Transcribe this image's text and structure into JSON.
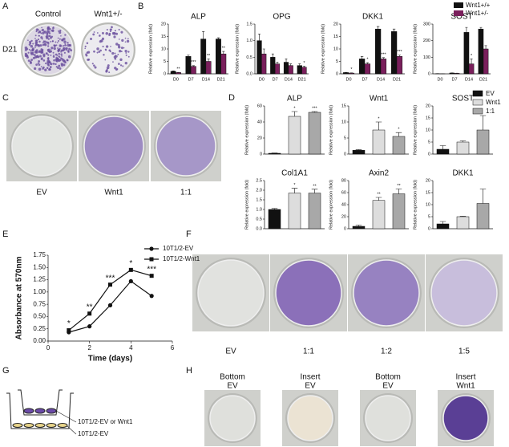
{
  "panel_letters": [
    "A",
    "B",
    "C",
    "D",
    "E",
    "F",
    "G",
    "H"
  ],
  "images": {
    "A": {
      "labels": [
        "Control",
        "Wnt1+/-"
      ],
      "row_label": "D21"
    },
    "C": {
      "labels": [
        "EV",
        "Wnt1",
        "1:1"
      ]
    },
    "F": {
      "labels": [
        "EV",
        "1:1",
        "1:2",
        "1:5"
      ]
    },
    "G": {
      "labels": [
        "10T1/2-EV or Wnt1",
        "10T1/2-EV"
      ]
    },
    "H": {
      "labels": [
        [
          "Bottom",
          "EV"
        ],
        [
          "Insert",
          "EV"
        ],
        [
          "Bottom",
          "EV"
        ],
        [
          "Insert",
          "Wnt1"
        ]
      ]
    }
  },
  "chart_data": [
    {
      "type": "bar",
      "title": "ALP",
      "y_label": "Relative expression (fold)",
      "categories": [
        "D0",
        "D7",
        "D14",
        "D21"
      ],
      "ylim": [
        0,
        20
      ],
      "yticks": [
        0,
        5,
        10,
        15,
        20
      ],
      "series": [
        {
          "name": "Wnt1+/+",
          "color": "#111111",
          "values": [
            1,
            7,
            14,
            14
          ],
          "errors": [
            0.2,
            0.5,
            3,
            0.5
          ]
        },
        {
          "name": "Wnt1+/-",
          "color": "#7a1f5c",
          "values": [
            0.5,
            3,
            5,
            8
          ],
          "errors": [
            0.1,
            0.3,
            1,
            1
          ],
          "annotations": [
            "**",
            "***",
            "**",
            "**"
          ]
        }
      ]
    },
    {
      "type": "bar",
      "title": "OPG",
      "y_label": "Relative expression (fold)",
      "categories": [
        "D0",
        "D7",
        "D14",
        "D21"
      ],
      "ylim": [
        0,
        1.5
      ],
      "yticks": [
        {
          "value": 0,
          "label": "0.0"
        },
        {
          "value": 0.5,
          "label": "0.5"
        },
        {
          "value": 1,
          "label": "1.0"
        },
        {
          "value": 1.5,
          "label": "1.5"
        }
      ],
      "series": [
        {
          "color": "#111111",
          "values": [
            1.0,
            0.5,
            0.35,
            0.25
          ],
          "errors": [
            0.2,
            0.1,
            0.1,
            0.05
          ]
        },
        {
          "color": "#7a1f5c",
          "values": [
            0.6,
            0.3,
            0.25,
            0.2
          ],
          "errors": [
            0.15,
            0.05,
            0.05,
            0.03
          ],
          "annotations": [
            null,
            null,
            null,
            "*"
          ]
        }
      ]
    },
    {
      "type": "bar",
      "title": "DKK1",
      "y_label": "Relative expression (fold)",
      "categories": [
        "D0",
        "D7",
        "D14",
        "D21"
      ],
      "ylim": [
        0,
        20
      ],
      "yticks": [
        0,
        5,
        10,
        15,
        20
      ],
      "series": [
        {
          "color": "#111111",
          "values": [
            0.5,
            6,
            18,
            17
          ],
          "errors": [
            0.1,
            1,
            1,
            1
          ]
        },
        {
          "color": "#7a1f5c",
          "values": [
            0.3,
            4,
            6,
            7
          ],
          "errors": [
            0.1,
            0.5,
            0.5,
            0.5
          ],
          "annotations": [
            "*",
            "*",
            "***",
            "***"
          ]
        }
      ]
    },
    {
      "type": "bar",
      "title": "SOST",
      "y_label": "Relative expression (fold)",
      "categories": [
        "D0",
        "D7",
        "D14",
        "D21"
      ],
      "ylim": [
        0,
        300
      ],
      "yticks": [
        0,
        100,
        200,
        300
      ],
      "series": [
        {
          "color": "#111111",
          "values": [
            1,
            5,
            250,
            270
          ],
          "errors": [
            0.5,
            1,
            30,
            10
          ]
        },
        {
          "color": "#7a1f5c",
          "values": [
            0.5,
            3,
            60,
            150
          ],
          "errors": [
            0.2,
            1,
            30,
            20
          ],
          "annotations": [
            null,
            null,
            "*",
            null
          ]
        }
      ]
    },
    {
      "type": "bar",
      "title": "ALP",
      "y_label": "Relative expression (fold)",
      "categories": [
        "EV",
        "Wnt1",
        "1:1"
      ],
      "colors": [
        "#111111",
        "#dddddd",
        "#a8a8a8"
      ],
      "ylim": [
        0,
        60
      ],
      "yticks": [
        0,
        20,
        40,
        60
      ],
      "values": [
        1,
        47,
        52
      ],
      "errors": [
        0.3,
        6,
        1
      ],
      "annotations": [
        null,
        "*",
        "***"
      ]
    },
    {
      "type": "bar",
      "title": "Wnt1",
      "y_label": "Relative expression (fold)",
      "colors": [
        "#111111",
        "#dddddd",
        "#a8a8a8"
      ],
      "ylim": [
        0,
        15
      ],
      "yticks": [
        0,
        5,
        10,
        15
      ],
      "values": [
        1.2,
        7.5,
        5.5
      ],
      "errors": [
        0.2,
        2.5,
        1.2
      ],
      "annotations": [
        null,
        "*",
        "*"
      ]
    },
    {
      "type": "bar",
      "title": "SOST",
      "y_label": "Relative expression (fold)",
      "colors": [
        "#111111",
        "#dddddd",
        "#a8a8a8"
      ],
      "ylim": [
        0,
        20
      ],
      "yticks": [
        0,
        5,
        10,
        15,
        20
      ],
      "values": [
        2,
        5,
        10
      ],
      "errors": [
        1.5,
        0.5,
        6
      ]
    },
    {
      "type": "bar",
      "title": "Col1A1",
      "y_label": "Relative expression (fold)",
      "colors": [
        "#111111",
        "#dddddd",
        "#a8a8a8"
      ],
      "ylim": [
        0,
        2.5
      ],
      "yticks": [
        {
          "value": 0,
          "label": "0.0"
        },
        {
          "value": 0.5,
          "label": "0.5"
        },
        {
          "value": 1,
          "label": "1.0"
        },
        {
          "value": 1.5,
          "label": "1.5"
        },
        {
          "value": 2,
          "label": "2.0"
        },
        {
          "value": 2.5,
          "label": "2.5"
        }
      ],
      "values": [
        1.0,
        1.85,
        1.85
      ],
      "errors": [
        0.05,
        0.25,
        0.2
      ],
      "annotations": [
        null,
        "*",
        "**"
      ]
    },
    {
      "type": "bar",
      "title": "Axin2",
      "y_label": "Relative expression (fold)",
      "colors": [
        "#111111",
        "#dddddd",
        "#a8a8a8"
      ],
      "ylim": [
        0,
        80
      ],
      "yticks": [
        0,
        20,
        40,
        60,
        80
      ],
      "values": [
        4,
        47,
        58
      ],
      "errors": [
        2,
        5,
        8
      ],
      "annotations": [
        null,
        "**",
        "**"
      ]
    },
    {
      "type": "bar",
      "title": "DKK1",
      "y_label": "Relative expression (fold)",
      "colors": [
        "#111111",
        "#dddddd",
        "#a8a8a8"
      ],
      "ylim": [
        0,
        20
      ],
      "yticks": [
        0,
        5,
        10,
        15,
        20
      ],
      "values": [
        2,
        5,
        10.5
      ],
      "errors": [
        1,
        0.2,
        6
      ]
    },
    {
      "type": "line",
      "x_label": "Time (days)",
      "y_label": "Absorbance at 570nm",
      "x": [
        1,
        2,
        3,
        4,
        5
      ],
      "xlim": [
        0,
        6
      ],
      "xticks": [
        0,
        2,
        4,
        6
      ],
      "ylim": [
        0,
        1.75
      ],
      "yticks": [
        {
          "value": 0,
          "label": "0.00"
        },
        {
          "value": 0.25,
          "label": "0.25"
        },
        {
          "value": 0.5,
          "label": "0.50"
        },
        {
          "value": 0.75,
          "label": "0.75"
        },
        {
          "value": 1,
          "label": "1.00"
        },
        {
          "value": 1.25,
          "label": "1.25"
        },
        {
          "value": 1.5,
          "label": "1.50"
        },
        {
          "value": 1.75,
          "label": "1.75"
        }
      ],
      "annotations": [
        "*",
        "**",
        "***",
        "*",
        "***"
      ],
      "series": [
        {
          "name": "10T1/2-EV",
          "color": "#111111",
          "marker": "circle",
          "values": [
            0.18,
            0.3,
            0.73,
            1.22,
            0.92
          ]
        },
        {
          "name": "10T1/2-Wnt1",
          "color": "#111111",
          "marker": "square",
          "values": [
            0.22,
            0.56,
            1.15,
            1.45,
            1.33
          ]
        }
      ]
    }
  ]
}
